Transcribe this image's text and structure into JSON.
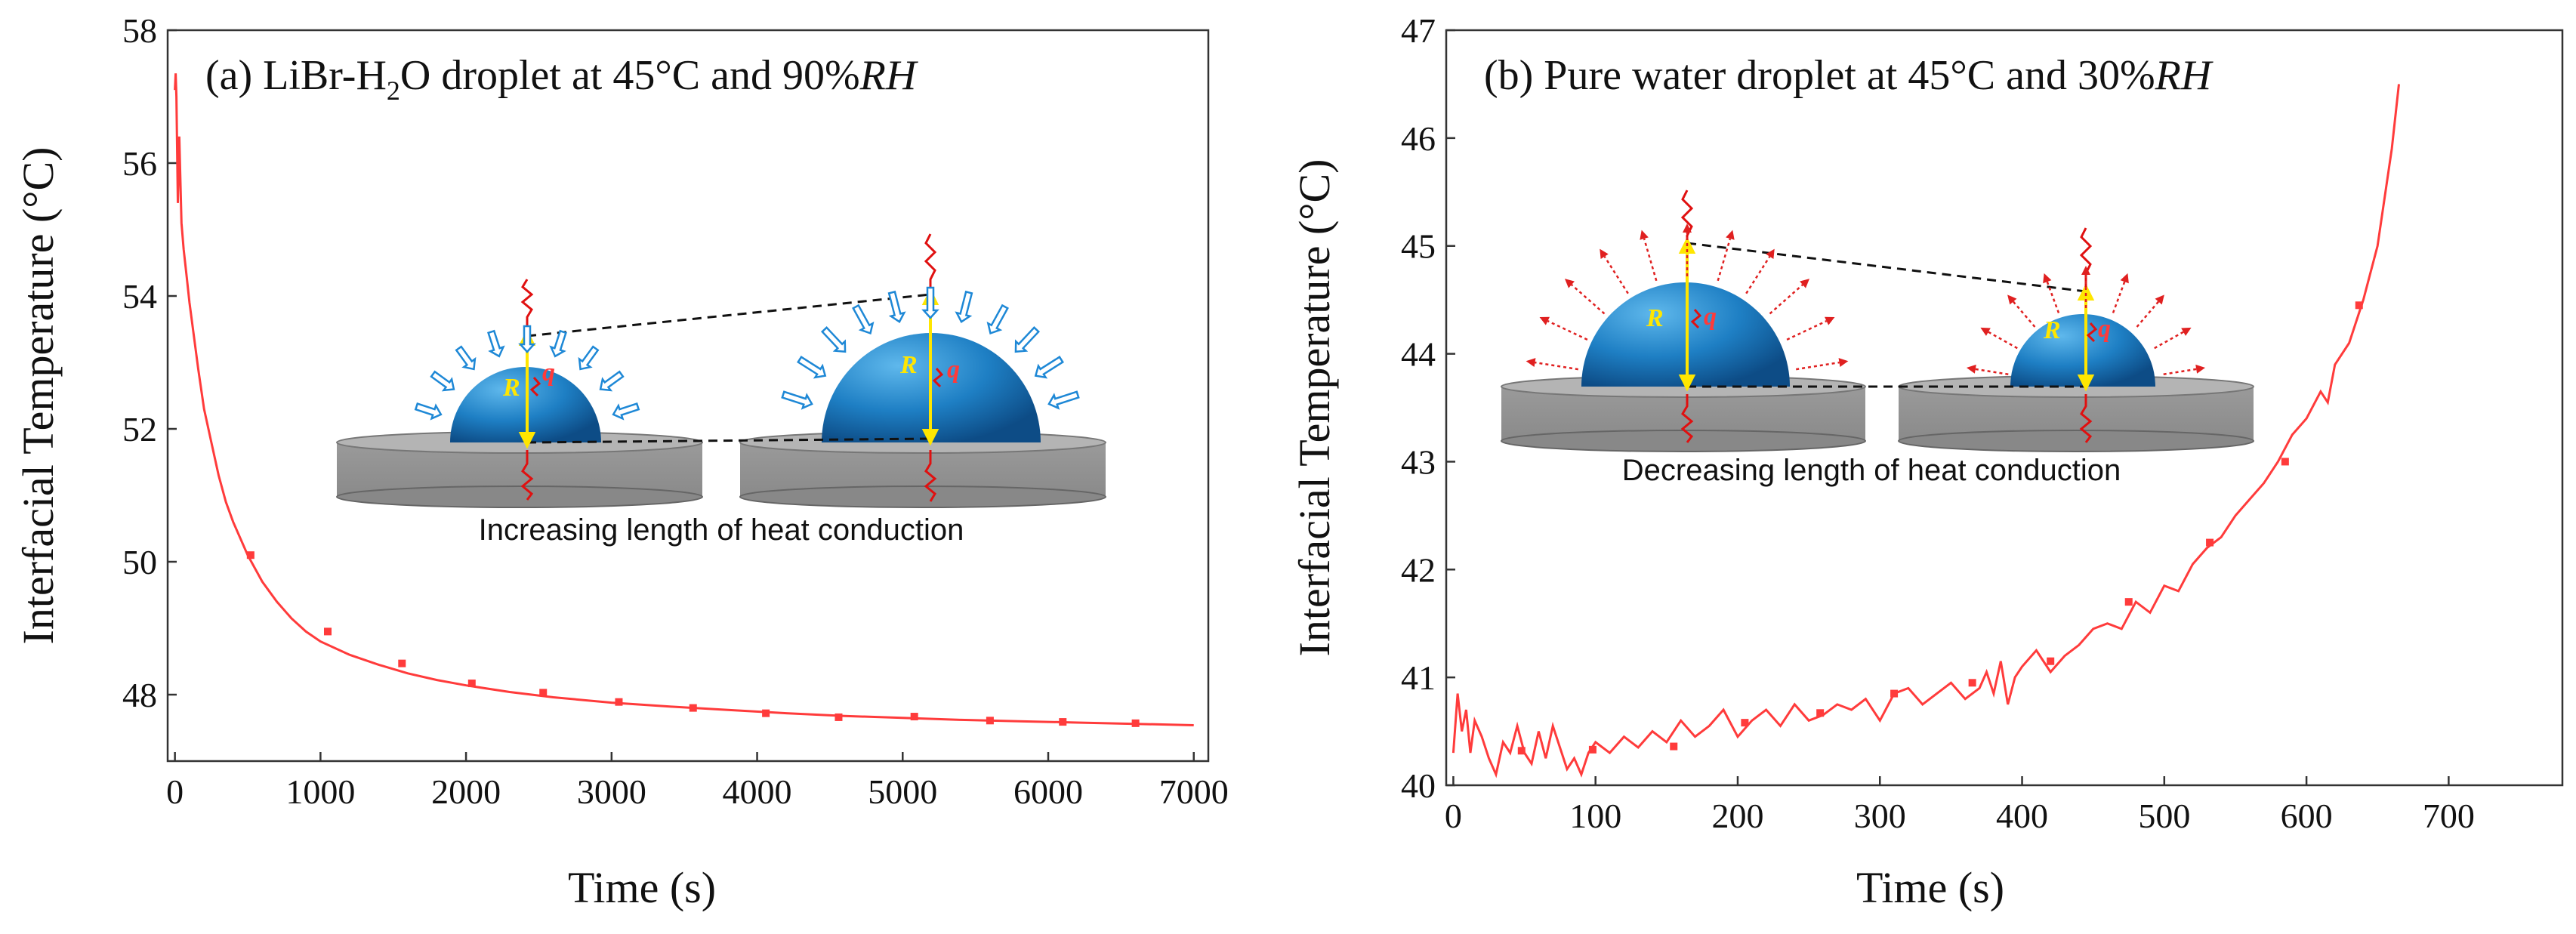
{
  "chart_data": [
    {
      "type": "line",
      "panel": "a",
      "title": {
        "prefix": "(a) LiBr-H",
        "sub": "2",
        "middle": "O droplet at 45°C and 90%",
        "italic": "RH"
      },
      "xlabel": "Time (s)",
      "ylabel": "Interfacial Temperature (°C)",
      "xlim": [
        -50,
        7100
      ],
      "ylim": [
        47.0,
        58.0
      ],
      "xticks": [
        0,
        1000,
        2000,
        3000,
        4000,
        5000,
        6000,
        7000
      ],
      "yticks": [
        48,
        50,
        52,
        54,
        56,
        58
      ],
      "series": [
        {
          "name": "LiBr-H2O droplet",
          "color": "#ff3b3b",
          "x": [
            0,
            5,
            10,
            20,
            30,
            45,
            60,
            80,
            100,
            130,
            160,
            200,
            250,
            300,
            350,
            400,
            500,
            600,
            700,
            800,
            900,
            1000,
            1200,
            1400,
            1600,
            1800,
            2000,
            2300,
            2600,
            3000,
            3400,
            3800,
            4200,
            4600,
            5000,
            5400,
            5800,
            6200,
            6600,
            7000
          ],
          "y": [
            57.1,
            57.35,
            57.0,
            55.4,
            56.4,
            55.1,
            54.7,
            54.3,
            53.9,
            53.4,
            52.9,
            52.3,
            51.8,
            51.3,
            50.9,
            50.6,
            50.1,
            49.7,
            49.4,
            49.15,
            48.95,
            48.8,
            48.6,
            48.45,
            48.32,
            48.22,
            48.14,
            48.04,
            47.96,
            47.88,
            47.82,
            47.77,
            47.72,
            47.68,
            47.65,
            47.62,
            47.6,
            47.58,
            47.56,
            47.54
          ]
        }
      ],
      "markers": {
        "x": [
          520,
          1050,
          1560,
          2040,
          2530,
          3050,
          3560,
          4060,
          4560,
          5080,
          5600,
          6100,
          6600
        ],
        "y": [
          50.1,
          48.95,
          48.47,
          48.17,
          48.03,
          47.89,
          47.8,
          47.72,
          47.66,
          47.67,
          47.61,
          47.59,
          47.57
        ]
      },
      "inset": {
        "caption": "Increasing length of heat conduction",
        "left_label_R": "R",
        "left_label_q": "q",
        "right_label_R": "R",
        "right_label_q": "q"
      }
    },
    {
      "type": "line",
      "panel": "b",
      "title": {
        "prefix": "(b) Pure water droplet at 45°C and 30%",
        "italic": "RH"
      },
      "xlabel": "Time (s)",
      "ylabel": "Interfacial Temperature (°C)",
      "xlim": [
        -5,
        780
      ],
      "ylim": [
        40.0,
        47.0
      ],
      "xticks": [
        0,
        100,
        200,
        300,
        400,
        500,
        600,
        700
      ],
      "yticks": [
        40,
        41,
        42,
        43,
        44,
        45,
        46,
        47
      ],
      "series": [
        {
          "name": "Pure water droplet",
          "color": "#ff3b3b",
          "x": [
            0,
            3,
            6,
            9,
            12,
            15,
            20,
            25,
            30,
            35,
            40,
            45,
            50,
            55,
            60,
            65,
            70,
            75,
            80,
            85,
            90,
            95,
            100,
            110,
            120,
            130,
            140,
            150,
            160,
            170,
            180,
            190,
            200,
            210,
            220,
            230,
            240,
            250,
            260,
            270,
            280,
            290,
            300,
            310,
            320,
            330,
            340,
            350,
            360,
            370,
            375,
            380,
            385,
            390,
            395,
            400,
            410,
            420,
            430,
            440,
            450,
            460,
            470,
            480,
            490,
            500,
            510,
            520,
            530,
            540,
            550,
            560,
            570,
            580,
            590,
            600,
            610,
            615,
            620,
            630,
            640,
            650,
            660,
            665
          ],
          "y": [
            40.3,
            40.85,
            40.5,
            40.7,
            40.3,
            40.6,
            40.45,
            40.25,
            40.1,
            40.4,
            40.3,
            40.55,
            40.3,
            40.2,
            40.5,
            40.25,
            40.55,
            40.35,
            40.15,
            40.25,
            40.1,
            40.3,
            40.4,
            40.3,
            40.45,
            40.35,
            40.5,
            40.4,
            40.6,
            40.45,
            40.55,
            40.7,
            40.45,
            40.6,
            40.7,
            40.55,
            40.75,
            40.6,
            40.65,
            40.75,
            40.7,
            40.8,
            40.6,
            40.85,
            40.9,
            40.75,
            40.85,
            40.95,
            40.8,
            40.9,
            41.05,
            40.85,
            41.15,
            40.75,
            41.0,
            41.1,
            41.25,
            41.05,
            41.2,
            41.3,
            41.45,
            41.5,
            41.45,
            41.7,
            41.6,
            41.85,
            41.8,
            42.05,
            42.2,
            42.3,
            42.5,
            42.65,
            42.8,
            43.0,
            43.25,
            43.4,
            43.65,
            43.55,
            43.9,
            44.1,
            44.5,
            45.0,
            45.9,
            46.5
          ]
        }
      ],
      "markers": {
        "x": [
          48,
          98,
          155,
          205,
          258,
          310,
          365,
          420,
          475,
          532,
          585,
          637
        ],
        "y": [
          40.32,
          40.33,
          40.36,
          40.58,
          40.67,
          40.85,
          40.95,
          41.15,
          41.7,
          42.25,
          43.0,
          44.45
        ]
      },
      "inset": {
        "caption": "Decreasing length of heat conduction",
        "left_label_R": "R",
        "left_label_q": "q",
        "right_label_R": "R",
        "right_label_q": "q"
      }
    }
  ]
}
